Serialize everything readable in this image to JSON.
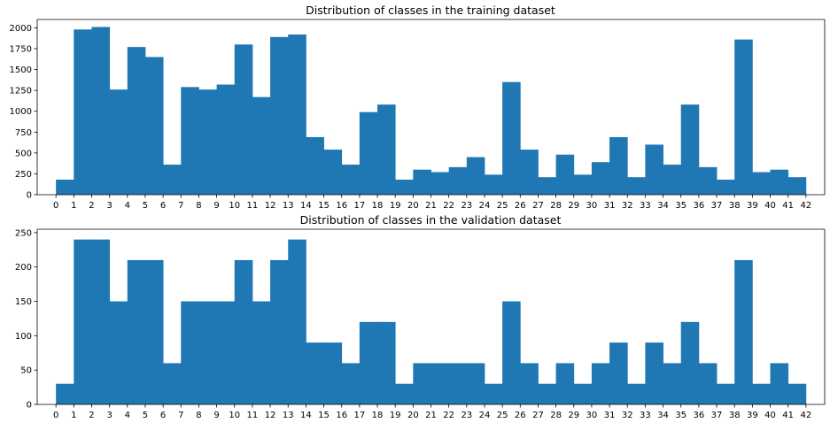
{
  "chart_data": [
    {
      "type": "bar",
      "title": "Distribution of classes in the training dataset",
      "xlabel": "",
      "ylabel": "",
      "categories": [
        "0",
        "1",
        "2",
        "3",
        "4",
        "5",
        "6",
        "7",
        "8",
        "9",
        "10",
        "11",
        "12",
        "13",
        "14",
        "15",
        "16",
        "17",
        "18",
        "19",
        "20",
        "21",
        "22",
        "23",
        "24",
        "25",
        "26",
        "27",
        "28",
        "29",
        "30",
        "31",
        "32",
        "33",
        "34",
        "35",
        "36",
        "37",
        "38",
        "39",
        "40",
        "41",
        "42"
      ],
      "xlim": [
        0,
        42
      ],
      "ylim": [
        0,
        2100
      ],
      "yticks": [
        0,
        250,
        500,
        750,
        1000,
        1250,
        1500,
        1750,
        2000
      ],
      "values": [
        180,
        1980,
        2010,
        1260,
        1770,
        1650,
        360,
        1290,
        1260,
        1320,
        1800,
        1170,
        1890,
        1920,
        690,
        540,
        360,
        990,
        1080,
        180,
        300,
        270,
        330,
        450,
        240,
        1350,
        540,
        210,
        480,
        240,
        390,
        690,
        210,
        600,
        360,
        1080,
        330,
        180,
        1860,
        270,
        300,
        210,
        210
      ],
      "grid": false,
      "color": "#1f77b4"
    },
    {
      "type": "bar",
      "title": "Distribution of classes in the validation dataset",
      "xlabel": "",
      "ylabel": "",
      "categories": [
        "0",
        "1",
        "2",
        "3",
        "4",
        "5",
        "6",
        "7",
        "8",
        "9",
        "10",
        "11",
        "12",
        "13",
        "14",
        "15",
        "16",
        "17",
        "18",
        "19",
        "20",
        "21",
        "22",
        "23",
        "24",
        "25",
        "26",
        "27",
        "28",
        "29",
        "30",
        "31",
        "32",
        "33",
        "34",
        "35",
        "36",
        "37",
        "38",
        "39",
        "40",
        "41",
        "42"
      ],
      "xlim": [
        0,
        42
      ],
      "ylim": [
        0,
        255
      ],
      "yticks": [
        0,
        50,
        100,
        150,
        200,
        250
      ],
      "values": [
        30,
        240,
        240,
        150,
        210,
        210,
        60,
        150,
        150,
        150,
        210,
        150,
        210,
        240,
        90,
        90,
        60,
        120,
        120,
        30,
        60,
        60,
        60,
        60,
        30,
        150,
        60,
        30,
        60,
        30,
        60,
        90,
        30,
        90,
        60,
        120,
        60,
        30,
        210,
        30,
        60,
        30,
        30
      ],
      "grid": false,
      "color": "#1f77b4"
    }
  ]
}
